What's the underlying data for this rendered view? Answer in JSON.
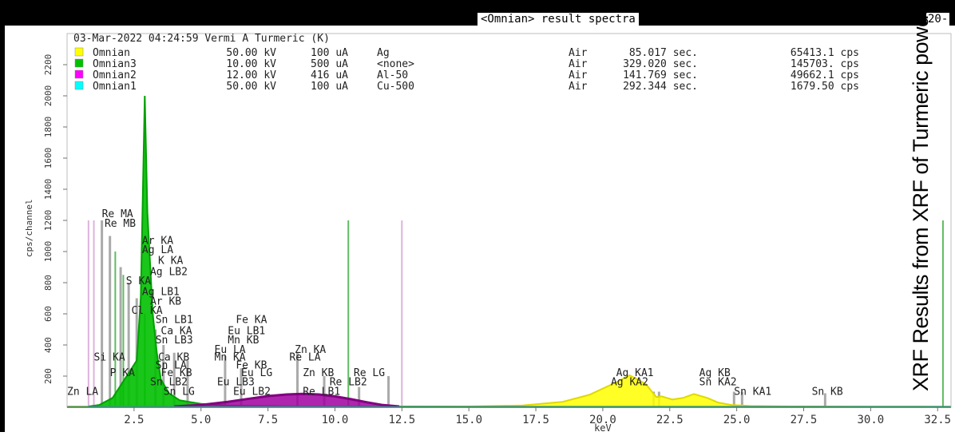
{
  "window": {
    "title": "<Omnian> result spectra",
    "title_right": "20-"
  },
  "header": {
    "sample_line": "03-Mar-2022 04:24:59 Vermi A Turmeric (K)",
    "runs": [
      {
        "swatch_color": "#ffff00",
        "name": "Omnian",
        "kv": "50.00 kV",
        "ua": "100 uA",
        "filter": "Ag",
        "medium": "Air",
        "time": "85.017 sec.",
        "rate": "65413.1 cps"
      },
      {
        "swatch_color": "#00c000",
        "name": "Omnian3",
        "kv": "10.00 kV",
        "ua": "500 uA",
        "filter": "<none>",
        "medium": "Air",
        "time": "329.020 sec.",
        "rate": "145703. cps"
      },
      {
        "swatch_color": "#ff00ff",
        "name": "Omnian2",
        "kv": "12.00 kV",
        "ua": "416 uA",
        "filter": "Al-50",
        "medium": "Air",
        "time": "141.769 sec.",
        "rate": "49662.1 cps"
      },
      {
        "swatch_color": "#00ffff",
        "name": "Omnian1",
        "kv": "50.00 kV",
        "ua": "100 uA",
        "filter": "Cu-500",
        "medium": "Air",
        "time": "292.344 sec.",
        "rate": "1679.50 cps"
      }
    ]
  },
  "caption": "XRF Results from XRF of Turmeric powder",
  "chart_data": {
    "type": "line",
    "xlabel": "keV",
    "ylabel": "cps/channel",
    "xlim": [
      0,
      33
    ],
    "ylim": [
      0,
      2400
    ],
    "x_ticks": [
      "2.5",
      "5.0",
      "7.5",
      "10.0",
      "12.5",
      "15.0",
      "17.5",
      "20.0",
      "22.5",
      "25.0",
      "27.5",
      "30.0",
      "32.5"
    ],
    "x_tick_values": [
      2.5,
      5.0,
      7.5,
      10.0,
      12.5,
      15.0,
      17.5,
      20.0,
      22.5,
      25.0,
      27.5,
      30.0,
      32.5
    ],
    "y_ticks": [
      "200",
      "400",
      "600",
      "800",
      "1000",
      "1200",
      "1400",
      "1600",
      "1800",
      "2000",
      "2200"
    ],
    "y_tick_values": [
      200,
      400,
      600,
      800,
      1000,
      1200,
      1400,
      1600,
      1800,
      2000,
      2200
    ],
    "series": [
      {
        "name": "Omnian",
        "color": "#e0d800",
        "fill": "#ffff00",
        "x": [
          0,
          12,
          15,
          17,
          18.5,
          19.5,
          20.5,
          21.0,
          21.6,
          22.0,
          22.2,
          22.6,
          23.0,
          23.4,
          23.9,
          24.3,
          24.8,
          25.5,
          27,
          30,
          33
        ],
        "values": [
          5,
          5,
          5,
          12,
          35,
          80,
          160,
          205,
          150,
          65,
          70,
          50,
          60,
          85,
          60,
          30,
          15,
          8,
          5,
          4,
          3
        ]
      },
      {
        "name": "Omnian3",
        "color": "#00a000",
        "fill": "#00c000",
        "x": [
          0.8,
          1.2,
          1.7,
          2.0,
          2.3,
          2.6,
          2.75,
          2.9,
          3.0,
          3.2,
          3.35,
          3.5,
          3.8,
          4.2,
          5.0,
          6.0,
          7.0,
          9.0,
          12.0,
          15,
          33
        ],
        "values": [
          5,
          15,
          60,
          140,
          220,
          300,
          700,
          2000,
          1250,
          600,
          350,
          180,
          90,
          45,
          22,
          12,
          8,
          5,
          4,
          3,
          3
        ]
      },
      {
        "name": "Omnian2",
        "color": "#800080",
        "fill": "#a000a0",
        "x": [
          4.0,
          5.0,
          6.0,
          6.8,
          7.5,
          8.2,
          8.8,
          9.4,
          10.0,
          10.6,
          11.2,
          11.8,
          12.4
        ],
        "values": [
          5,
          15,
          35,
          55,
          72,
          82,
          86,
          82,
          70,
          52,
          32,
          14,
          5
        ]
      },
      {
        "name": "Omnian1",
        "color": "#00b0b0",
        "fill": "#00ffff",
        "x": [
          0,
          33
        ],
        "values": [
          2,
          2
        ]
      }
    ],
    "markers": [
      {
        "x": 0.8,
        "height": 1200,
        "color": "pink"
      },
      {
        "x": 1.0,
        "height": 1200,
        "color": "pink"
      },
      {
        "x": 1.3,
        "height": 1200,
        "color": "grey"
      },
      {
        "x": 1.6,
        "height": 1100,
        "color": "grey"
      },
      {
        "x": 1.8,
        "height": 1000,
        "color": "green"
      },
      {
        "x": 2.0,
        "height": 900,
        "color": "grey"
      },
      {
        "x": 2.1,
        "height": 850,
        "color": "green"
      },
      {
        "x": 2.3,
        "height": 800,
        "color": "grey"
      },
      {
        "x": 2.6,
        "height": 700,
        "color": "grey"
      },
      {
        "x": 2.9,
        "height": 600,
        "color": "green"
      },
      {
        "x": 3.3,
        "height": 500,
        "color": "grey"
      },
      {
        "x": 3.6,
        "height": 400,
        "color": "grey"
      },
      {
        "x": 4.0,
        "height": 350,
        "color": "grey"
      },
      {
        "x": 4.5,
        "height": 300,
        "color": "grey"
      },
      {
        "x": 5.9,
        "height": 330,
        "color": "grey"
      },
      {
        "x": 6.5,
        "height": 250,
        "color": "grey"
      },
      {
        "x": 8.6,
        "height": 350,
        "color": "grey"
      },
      {
        "x": 9.6,
        "height": 200,
        "color": "grey"
      },
      {
        "x": 10.5,
        "height": 1200,
        "color": "green"
      },
      {
        "x": 10.9,
        "height": 130,
        "color": "grey"
      },
      {
        "x": 12.0,
        "height": 200,
        "color": "grey"
      },
      {
        "x": 12.5,
        "height": 1200,
        "color": "pink"
      },
      {
        "x": 21.9,
        "height": 100,
        "color": "grey"
      },
      {
        "x": 22.1,
        "height": 100,
        "color": "grey"
      },
      {
        "x": 24.9,
        "height": 100,
        "color": "grey"
      },
      {
        "x": 25.2,
        "height": 100,
        "color": "grey"
      },
      {
        "x": 28.3,
        "height": 90,
        "color": "grey"
      },
      {
        "x": 32.7,
        "height": 1200,
        "color": "green"
      }
    ],
    "peak_labels": [
      {
        "text": "Re MA",
        "x": 1.3,
        "y": 1220
      },
      {
        "text": "Re MB",
        "x": 1.4,
        "y": 1160
      },
      {
        "text": "Ar KA",
        "x": 2.8,
        "y": 1050
      },
      {
        "text": "Ag LA",
        "x": 2.8,
        "y": 990
      },
      {
        "text": "K KA",
        "x": 3.4,
        "y": 920
      },
      {
        "text": "Ag LB2",
        "x": 3.1,
        "y": 850
      },
      {
        "text": "S KA",
        "x": 2.2,
        "y": 790
      },
      {
        "text": "Ag LB1",
        "x": 2.8,
        "y": 720
      },
      {
        "text": "Ar KB",
        "x": 3.1,
        "y": 660
      },
      {
        "text": "Cl KA",
        "x": 2.4,
        "y": 600
      },
      {
        "text": "Sn LB1",
        "x": 3.3,
        "y": 540
      },
      {
        "text": "Fe KA",
        "x": 6.3,
        "y": 540
      },
      {
        "text": "Ca KA",
        "x": 3.5,
        "y": 470
      },
      {
        "text": "Eu LB1",
        "x": 6.0,
        "y": 470
      },
      {
        "text": "Sn LB3",
        "x": 3.3,
        "y": 410
      },
      {
        "text": "Mn KB",
        "x": 6.0,
        "y": 410
      },
      {
        "text": "Eu LA",
        "x": 5.5,
        "y": 350
      },
      {
        "text": "Zn KA",
        "x": 8.5,
        "y": 350
      },
      {
        "text": "Si KA",
        "x": 1.0,
        "y": 300
      },
      {
        "text": "Ca KB",
        "x": 3.4,
        "y": 300
      },
      {
        "text": "Mn KA",
        "x": 5.5,
        "y": 300
      },
      {
        "text": "Re LA",
        "x": 8.3,
        "y": 300
      },
      {
        "text": "Sn LA",
        "x": 3.3,
        "y": 250
      },
      {
        "text": "Fe KB",
        "x": 6.3,
        "y": 250
      },
      {
        "text": "P KA",
        "x": 1.6,
        "y": 200
      },
      {
        "text": "Fe KB",
        "x": 3.5,
        "y": 200
      },
      {
        "text": "Eu LG",
        "x": 6.5,
        "y": 200
      },
      {
        "text": "Zn KB",
        "x": 8.8,
        "y": 200
      },
      {
        "text": "Re LG",
        "x": 10.7,
        "y": 200
      },
      {
        "text": "Sn LB2",
        "x": 3.1,
        "y": 140
      },
      {
        "text": "Eu LB3",
        "x": 5.6,
        "y": 140
      },
      {
        "text": "Re LB2",
        "x": 9.8,
        "y": 140
      },
      {
        "text": "Zn LA",
        "x": 0.0,
        "y": 80
      },
      {
        "text": "Sn LG",
        "x": 3.6,
        "y": 80
      },
      {
        "text": "Eu LB2",
        "x": 6.2,
        "y": 80
      },
      {
        "text": "Re LB1",
        "x": 8.8,
        "y": 80
      },
      {
        "text": "Ag KA1",
        "x": 20.5,
        "y": 200
      },
      {
        "text": "Ag KB",
        "x": 23.6,
        "y": 200
      },
      {
        "text": "Ag KA2",
        "x": 20.3,
        "y": 140
      },
      {
        "text": "Sn KA2",
        "x": 23.6,
        "y": 140
      },
      {
        "text": "Sn KA1",
        "x": 24.9,
        "y": 80
      },
      {
        "text": "Sn KB",
        "x": 27.8,
        "y": 80
      }
    ]
  }
}
